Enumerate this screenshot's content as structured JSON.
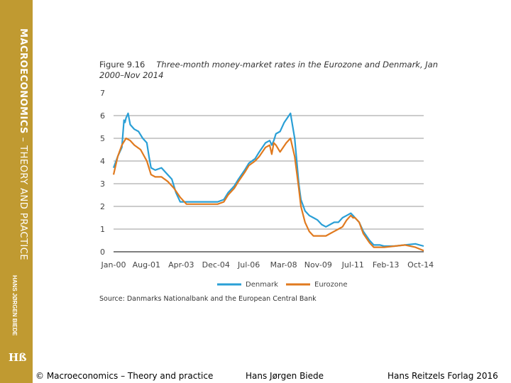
{
  "sidebar": {
    "title_bold": "MACROECONOMICS",
    "title_rest": " – THEORY AND PRACTICE",
    "author": "HANS JØRGEN BIEDE",
    "logo": "Hß"
  },
  "figure": {
    "label": "Figure 9.16",
    "caption": "Three-month money-market rates in the Eurozone and Denmark, Jan 2000–Nov 2014",
    "source": "Source: Danmarks Nationalbank and the European Central Bank"
  },
  "footer": {
    "left": "© Macroeconomics – Theory and practice",
    "center": "Hans Jørgen Biede",
    "right": "Hans Reitzels Forlag 2016"
  },
  "colors": {
    "denmark": "#2a9fd6",
    "eurozone": "#e07a1f",
    "grid": "#333333"
  },
  "chart_data": {
    "type": "line",
    "title": "Three-month money-market rates in the Eurozone and Denmark, Jan 2000–Nov 2014",
    "xlabel": "",
    "ylabel": "",
    "xlim": [
      2000.0,
      2014.9
    ],
    "ylim": [
      0,
      7
    ],
    "y_ticks": [
      0,
      1,
      2,
      3,
      4,
      5,
      6,
      7
    ],
    "x_ticks": [
      {
        "label": "Jan-00",
        "x": 2000.0
      },
      {
        "label": "Aug-01",
        "x": 2001.58
      },
      {
        "label": "Apr-03",
        "x": 2003.25
      },
      {
        "label": "Dec-04",
        "x": 2004.92
      },
      {
        "label": "Jul-06",
        "x": 2006.5
      },
      {
        "label": "Mar-08",
        "x": 2008.17
      },
      {
        "label": "Nov-09",
        "x": 2009.83
      },
      {
        "label": "Jul-11",
        "x": 2011.5
      },
      {
        "label": "Feb-13",
        "x": 2013.08
      },
      {
        "label": "Oct-14",
        "x": 2014.75
      }
    ],
    "grid": true,
    "legend_position": "bottom",
    "series": [
      {
        "name": "Denmark",
        "color": "#2a9fd6",
        "x": [
          2000.0,
          2000.2,
          2000.4,
          2000.5,
          2000.55,
          2000.6,
          2000.7,
          2000.8,
          2001.0,
          2001.2,
          2001.4,
          2001.6,
          2001.7,
          2001.8,
          2002.0,
          2002.3,
          2002.5,
          2002.8,
          2003.0,
          2003.2,
          2003.5,
          2004.0,
          2004.5,
          2005.0,
          2005.3,
          2005.5,
          2005.8,
          2006.0,
          2006.3,
          2006.5,
          2006.8,
          2007.0,
          2007.3,
          2007.5,
          2007.6,
          2007.7,
          2007.8,
          2008.0,
          2008.2,
          2008.5,
          2008.7,
          2008.8,
          2008.9,
          2009.0,
          2009.2,
          2009.4,
          2009.6,
          2009.8,
          2010.0,
          2010.2,
          2010.4,
          2010.6,
          2010.8,
          2011.0,
          2011.2,
          2011.4,
          2011.5,
          2011.6,
          2011.8,
          2012.0,
          2012.3,
          2012.5,
          2012.8,
          2013.0,
          2013.5,
          2014.0,
          2014.5,
          2014.9
        ],
        "y": [
          3.7,
          4.2,
          4.6,
          5.8,
          5.7,
          5.9,
          6.1,
          5.6,
          5.4,
          5.3,
          5.0,
          4.8,
          4.2,
          3.7,
          3.6,
          3.7,
          3.5,
          3.2,
          2.6,
          2.2,
          2.2,
          2.2,
          2.2,
          2.2,
          2.3,
          2.6,
          2.9,
          3.2,
          3.6,
          3.9,
          4.1,
          4.4,
          4.8,
          4.9,
          4.7,
          4.9,
          5.2,
          5.3,
          5.7,
          6.1,
          5.0,
          4.0,
          3.0,
          2.3,
          1.8,
          1.6,
          1.5,
          1.4,
          1.2,
          1.1,
          1.2,
          1.3,
          1.3,
          1.5,
          1.6,
          1.7,
          1.6,
          1.5,
          1.3,
          0.9,
          0.5,
          0.3,
          0.3,
          0.25,
          0.25,
          0.3,
          0.35,
          0.25
        ]
      },
      {
        "name": "Eurozone",
        "color": "#e07a1f",
        "x": [
          2000.0,
          2000.2,
          2000.4,
          2000.6,
          2000.8,
          2001.0,
          2001.3,
          2001.6,
          2001.8,
          2002.0,
          2002.3,
          2002.6,
          2002.9,
          2003.2,
          2003.5,
          2004.0,
          2004.5,
          2005.0,
          2005.3,
          2005.5,
          2005.8,
          2006.0,
          2006.3,
          2006.5,
          2006.8,
          2007.0,
          2007.3,
          2007.5,
          2007.6,
          2007.7,
          2007.8,
          2008.0,
          2008.3,
          2008.5,
          2008.7,
          2008.8,
          2008.9,
          2009.0,
          2009.2,
          2009.4,
          2009.6,
          2009.8,
          2010.0,
          2010.2,
          2010.4,
          2010.6,
          2010.8,
          2011.0,
          2011.2,
          2011.4,
          2011.5,
          2011.6,
          2011.8,
          2012.0,
          2012.3,
          2012.5,
          2013.0,
          2013.5,
          2014.0,
          2014.5,
          2014.9
        ],
        "y": [
          3.4,
          4.2,
          4.7,
          5.0,
          4.9,
          4.7,
          4.5,
          4.0,
          3.4,
          3.3,
          3.3,
          3.1,
          2.8,
          2.4,
          2.1,
          2.1,
          2.1,
          2.1,
          2.2,
          2.5,
          2.8,
          3.1,
          3.5,
          3.8,
          4.0,
          4.2,
          4.6,
          4.7,
          4.3,
          4.8,
          4.7,
          4.4,
          4.8,
          5.0,
          4.2,
          3.5,
          2.8,
          2.0,
          1.3,
          0.9,
          0.7,
          0.7,
          0.7,
          0.7,
          0.8,
          0.9,
          1.0,
          1.1,
          1.4,
          1.6,
          1.5,
          1.5,
          1.3,
          0.8,
          0.4,
          0.2,
          0.2,
          0.25,
          0.3,
          0.2,
          0.05
        ]
      }
    ]
  }
}
